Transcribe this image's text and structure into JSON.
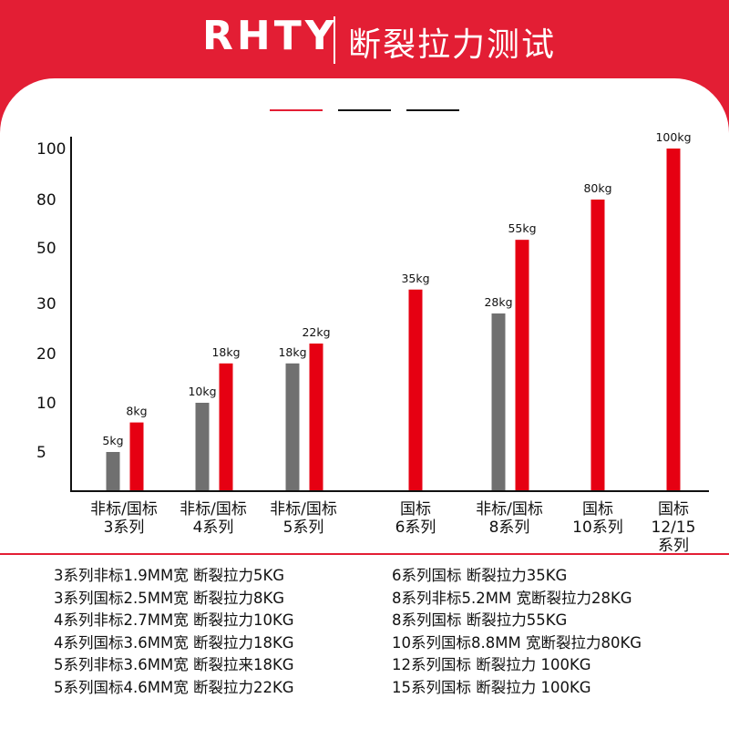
{
  "header": {
    "brand": "RHTY",
    "subtitle": "断裂拉力测试"
  },
  "colors": {
    "accent": "#e31e34",
    "grey": "#707070",
    "bar_red": "#e60012"
  },
  "chart_data": {
    "type": "bar",
    "title": "",
    "xlabel": "",
    "ylabel": "",
    "y_ticks": [
      "5",
      "10",
      "20",
      "30",
      "50",
      "80",
      "100"
    ],
    "categories": [
      [
        "非标/国标",
        "3系列"
      ],
      [
        "非标/国标",
        "4系列"
      ],
      [
        "非标/国标",
        "5系列"
      ],
      [
        "国标",
        "6系列"
      ],
      [
        "非标/国标",
        "8系列"
      ],
      [
        "国标",
        "10系列"
      ],
      [
        "国标",
        "12/15",
        "系列"
      ]
    ],
    "series": [
      {
        "name": "",
        "color": "#707070",
        "values": [
          5,
          10,
          18,
          null,
          28,
          null,
          null
        ],
        "labels": [
          "5kg",
          "10kg",
          "18kg",
          "",
          "28kg",
          "",
          ""
        ]
      },
      {
        "name": "",
        "color": "#e60012",
        "values": [
          8,
          18,
          22,
          35,
          55,
          80,
          100
        ],
        "labels": [
          "8kg",
          "18kg",
          "22kg",
          "35kg",
          "55kg",
          "80kg",
          "100kg"
        ]
      }
    ]
  },
  "specs": {
    "left": [
      "3系列非标1.9MM宽 断裂拉力5KG",
      "3系列国标2.5MM宽 断裂拉力8KG",
      "4系列非标2.7MM宽 断裂拉力10KG",
      "4系列国标3.6MM宽 断裂拉力18KG",
      "5系列非标3.6MM宽 断裂拉来18KG",
      "5系列国标4.6MM宽 断裂拉力22KG"
    ],
    "right": [
      "6系列国标 断裂拉力35KG",
      "8系列非标5.2MM 宽断裂拉力28KG",
      "8系列国标 断裂拉力55KG",
      "10系列国标8.8MM 宽断裂拉力80KG",
      "12系列国标 断裂拉力 100KG",
      "15系列国标 断裂拉力 100KG"
    ]
  }
}
